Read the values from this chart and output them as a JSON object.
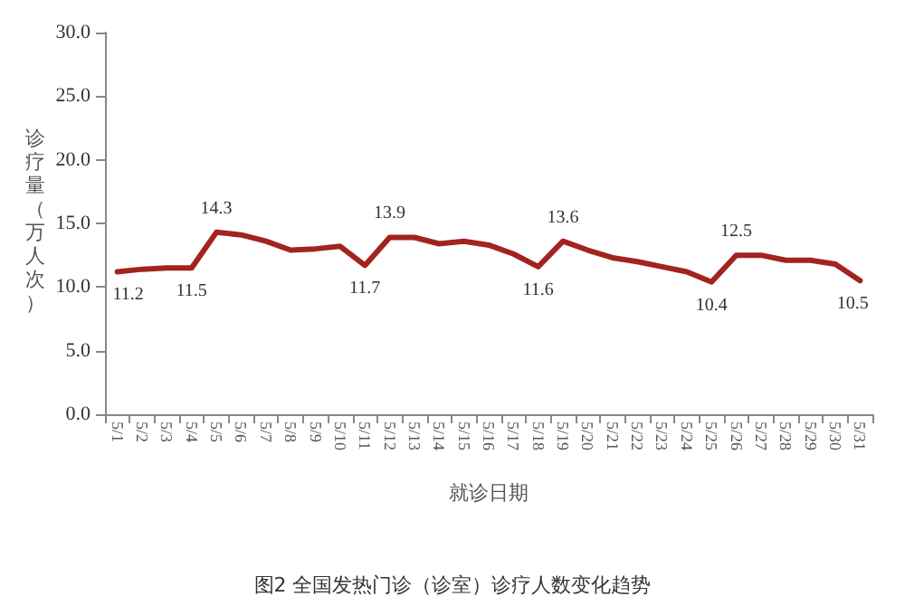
{
  "chart_data": {
    "type": "line",
    "xlabel": "就诊日期",
    "ylabel": "诊疗量（万人次）",
    "annotations": [
      "图2 全国发热门诊（诊室）诊疗人数变化趋势"
    ],
    "categories": [
      "5/1",
      "5/2",
      "5/3",
      "5/4",
      "5/5",
      "5/6",
      "5/7",
      "5/8",
      "5/9",
      "5/10",
      "5/11",
      "5/12",
      "5/13",
      "5/14",
      "5/15",
      "5/16",
      "5/17",
      "5/18",
      "5/19",
      "5/20",
      "5/21",
      "5/22",
      "5/23",
      "5/24",
      "5/25",
      "5/26",
      "5/27",
      "5/28",
      "5/29",
      "5/30",
      "5/31"
    ],
    "series": [
      {
        "color": "#a3231f",
        "values": [
          11.2,
          11.4,
          11.5,
          11.5,
          14.3,
          14.1,
          13.6,
          12.9,
          13.0,
          13.2,
          11.7,
          13.9,
          13.9,
          13.4,
          13.6,
          13.3,
          12.6,
          11.6,
          13.6,
          12.9,
          12.3,
          12.0,
          11.6,
          11.2,
          10.4,
          12.5,
          12.5,
          12.1,
          12.1,
          11.8,
          10.5
        ],
        "value_labels": [
          "11.2",
          null,
          null,
          "11.5",
          "14.3",
          null,
          null,
          null,
          null,
          null,
          "11.7",
          "13.9",
          null,
          null,
          null,
          null,
          null,
          "11.6",
          "13.6",
          null,
          null,
          null,
          null,
          null,
          "10.4",
          "12.5",
          null,
          null,
          null,
          null,
          "10.5"
        ]
      }
    ],
    "ylim": [
      0,
      30
    ],
    "yticks": [
      {
        "value": 0,
        "label": "0.0"
      },
      {
        "value": 5,
        "label": "5.0"
      },
      {
        "value": 10,
        "label": "10.0"
      },
      {
        "value": 15,
        "label": "15.0"
      },
      {
        "value": 20,
        "label": "20.0"
      },
      {
        "value": 25,
        "label": "25.0"
      },
      {
        "value": 30,
        "label": "30.0"
      }
    ],
    "grid": false,
    "marker": "none",
    "line_style": "solid"
  }
}
